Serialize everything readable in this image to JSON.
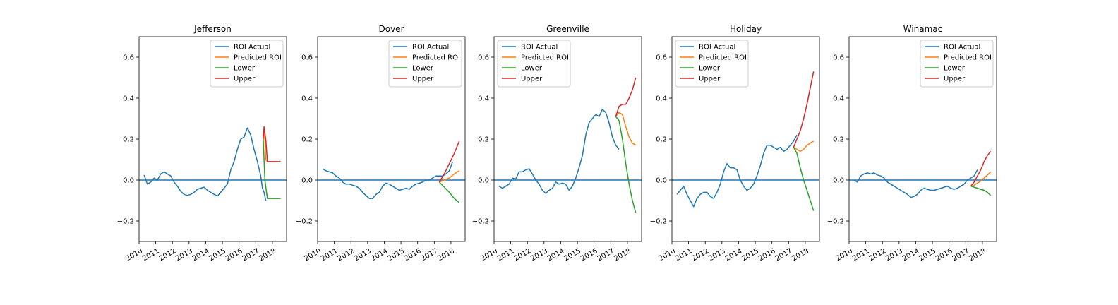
{
  "chart_data": [
    {
      "type": "line",
      "title": "Jefferson",
      "xlabel": "",
      "ylabel": "",
      "xlim": [
        2010.0,
        2018.85
      ],
      "ylim": [
        -0.3,
        0.7
      ],
      "xticks": [
        "2010",
        "2011",
        "2012",
        "2013",
        "2014",
        "2015",
        "2016",
        "2017",
        "2018"
      ],
      "yticks": [
        "−0.2",
        "0.0",
        "0.2",
        "0.4",
        "0.6"
      ],
      "legend_position": "top-right",
      "hline": 0.0,
      "series": [
        {
          "name": "ROI Actual",
          "color": "#1f77b4",
          "x": [
            2010.3,
            2010.5,
            2010.7,
            2010.9,
            2011.1,
            2011.3,
            2011.5,
            2011.7,
            2011.9,
            2012.1,
            2012.3,
            2012.5,
            2012.7,
            2012.9,
            2013.1,
            2013.3,
            2013.5,
            2013.7,
            2013.9,
            2014.1,
            2014.3,
            2014.5,
            2014.7,
            2014.9,
            2015.1,
            2015.3,
            2015.5,
            2015.7,
            2015.9,
            2016.1,
            2016.3,
            2016.5,
            2016.7,
            2016.9,
            2017.1,
            2017.3,
            2017.4,
            2017.5,
            2017.6,
            2017.8,
            2018.0,
            2018.2,
            2018.4,
            2018.6
          ],
          "y": [
            0.025,
            -0.02,
            -0.01,
            0.01,
            0.0,
            0.03,
            0.04,
            0.03,
            0.02,
            -0.01,
            -0.03,
            -0.055,
            -0.07,
            -0.075,
            -0.07,
            -0.06,
            -0.045,
            -0.04,
            -0.035,
            -0.05,
            -0.06,
            -0.07,
            -0.078,
            -0.06,
            -0.04,
            -0.02,
            0.05,
            0.09,
            0.15,
            0.2,
            0.21,
            0.255,
            0.22,
            0.15,
            0.09,
            0.02,
            -0.04,
            -0.06,
            -0.1,
            null,
            null,
            null,
            null,
            null
          ]
        },
        {
          "name": "Predicted ROI",
          "color": "#ff7f0e",
          "x": [
            2017.45,
            2017.5,
            2017.55,
            2017.6,
            2017.7
          ],
          "y": [
            0.2,
            0.24,
            0.2,
            0.1,
            0.09
          ]
        },
        {
          "name": "Lower",
          "color": "#2ca02c",
          "x": [
            2017.45,
            2017.55,
            2017.7,
            2018.0,
            2018.5
          ],
          "y": [
            0.2,
            0.0,
            -0.09,
            -0.09,
            -0.09
          ]
        },
        {
          "name": "Upper",
          "color": "#d62728",
          "x": [
            2017.45,
            2017.5,
            2017.6,
            2017.7,
            2018.0,
            2018.5
          ],
          "y": [
            0.2,
            0.26,
            0.2,
            0.09,
            0.09,
            0.09
          ]
        }
      ]
    },
    {
      "type": "line",
      "title": "Dover",
      "xlabel": "",
      "ylabel": "",
      "xlim": [
        2010.0,
        2018.85
      ],
      "ylim": [
        -0.3,
        0.7
      ],
      "xticks": [
        "2010",
        "2011",
        "2012",
        "2013",
        "2014",
        "2015",
        "2016",
        "2017",
        "2018"
      ],
      "yticks": [
        "−0.2",
        "0.0",
        "0.2",
        "0.4",
        "0.6"
      ],
      "legend_position": "top-right",
      "hline": 0.0,
      "series": [
        {
          "name": "ROI Actual",
          "color": "#1f77b4",
          "x": [
            2010.3,
            2010.5,
            2010.7,
            2010.9,
            2011.1,
            2011.3,
            2011.5,
            2011.7,
            2011.9,
            2012.1,
            2012.3,
            2012.5,
            2012.7,
            2012.9,
            2013.1,
            2013.3,
            2013.5,
            2013.7,
            2013.9,
            2014.1,
            2014.3,
            2014.5,
            2014.7,
            2014.9,
            2015.1,
            2015.3,
            2015.5,
            2015.7,
            2015.9,
            2016.1,
            2016.3,
            2016.5,
            2016.7,
            2016.9,
            2017.1,
            2017.3,
            2017.5,
            2017.7,
            2017.9,
            2018.1,
            2018.3,
            2018.5
          ],
          "y": [
            0.055,
            0.045,
            0.04,
            0.035,
            0.02,
            0.01,
            -0.01,
            -0.02,
            -0.02,
            -0.025,
            -0.03,
            -0.04,
            -0.06,
            -0.075,
            -0.09,
            -0.09,
            -0.07,
            -0.06,
            -0.03,
            -0.015,
            -0.02,
            -0.03,
            -0.04,
            -0.05,
            -0.045,
            -0.04,
            -0.045,
            -0.03,
            -0.02,
            -0.015,
            -0.01,
            0.0,
            0.0,
            0.01,
            0.02,
            0.02,
            0.02,
            0.03,
            0.045,
            0.09,
            null,
            null
          ]
        },
        {
          "name": "Predicted ROI",
          "color": "#ff7f0e",
          "x": [
            2017.3,
            2017.6,
            2017.9,
            2018.2,
            2018.5
          ],
          "y": [
            -0.01,
            0.0,
            0.01,
            0.03,
            0.045
          ]
        },
        {
          "name": "Lower",
          "color": "#2ca02c",
          "x": [
            2017.3,
            2017.6,
            2017.9,
            2018.2,
            2018.5
          ],
          "y": [
            -0.01,
            -0.035,
            -0.06,
            -0.09,
            -0.11
          ]
        },
        {
          "name": "Upper",
          "color": "#d62728",
          "x": [
            2017.3,
            2017.6,
            2017.9,
            2018.2,
            2018.5
          ],
          "y": [
            -0.01,
            0.03,
            0.08,
            0.13,
            0.19
          ]
        }
      ]
    },
    {
      "type": "line",
      "title": "Greenville",
      "xlabel": "",
      "ylabel": "",
      "xlim": [
        2010.0,
        2018.85
      ],
      "ylim": [
        -0.3,
        0.7
      ],
      "xticks": [
        "2010",
        "2011",
        "2012",
        "2013",
        "2014",
        "2015",
        "2016",
        "2017",
        "2018"
      ],
      "yticks": [
        "−0.2",
        "0.0",
        "0.2",
        "0.4",
        "0.6"
      ],
      "legend_position": "top-left",
      "hline": 0.0,
      "series": [
        {
          "name": "ROI Actual",
          "color": "#1f77b4",
          "x": [
            2010.3,
            2010.5,
            2010.7,
            2010.9,
            2011.1,
            2011.3,
            2011.5,
            2011.7,
            2011.9,
            2012.1,
            2012.3,
            2012.5,
            2012.7,
            2012.9,
            2013.1,
            2013.3,
            2013.5,
            2013.7,
            2013.9,
            2014.1,
            2014.3,
            2014.5,
            2014.7,
            2014.9,
            2015.1,
            2015.3,
            2015.5,
            2015.7,
            2015.9,
            2016.1,
            2016.3,
            2016.5,
            2016.7,
            2016.9,
            2017.1,
            2017.3,
            2017.5,
            2017.7,
            2017.9,
            2018.1,
            2018.3,
            2018.5
          ],
          "y": [
            -0.03,
            -0.04,
            -0.03,
            -0.02,
            0.01,
            0.005,
            0.04,
            0.04,
            0.05,
            0.055,
            0.03,
            0.0,
            -0.02,
            -0.05,
            -0.065,
            -0.05,
            -0.04,
            -0.01,
            -0.02,
            -0.015,
            -0.02,
            -0.05,
            -0.03,
            0.01,
            0.06,
            0.12,
            0.22,
            0.28,
            0.3,
            0.32,
            0.31,
            0.345,
            0.33,
            0.28,
            0.21,
            0.17,
            0.15,
            null,
            null,
            null,
            null,
            null
          ]
        },
        {
          "name": "Predicted ROI",
          "color": "#ff7f0e",
          "x": [
            2017.3,
            2017.5,
            2017.7,
            2017.9,
            2018.1,
            2018.3,
            2018.5
          ],
          "y": [
            0.31,
            0.33,
            0.32,
            0.26,
            0.21,
            0.18,
            0.17
          ]
        },
        {
          "name": "Lower",
          "color": "#2ca02c",
          "x": [
            2017.3,
            2017.5,
            2017.7,
            2017.9,
            2018.1,
            2018.3,
            2018.5
          ],
          "y": [
            0.31,
            0.29,
            0.2,
            0.08,
            -0.02,
            -0.1,
            -0.16
          ]
        },
        {
          "name": "Upper",
          "color": "#d62728",
          "x": [
            2017.3,
            2017.5,
            2017.7,
            2017.9,
            2018.1,
            2018.3,
            2018.5
          ],
          "y": [
            0.31,
            0.36,
            0.37,
            0.37,
            0.4,
            0.44,
            0.5
          ]
        }
      ]
    },
    {
      "type": "line",
      "title": "Holiday",
      "xlabel": "",
      "ylabel": "",
      "xlim": [
        2010.0,
        2018.85
      ],
      "ylim": [
        -0.3,
        0.7
      ],
      "xticks": [
        "2010",
        "2011",
        "2012",
        "2013",
        "2014",
        "2015",
        "2016",
        "2017",
        "2018"
      ],
      "yticks": [
        "−0.2",
        "0.0",
        "0.2",
        "0.4",
        "0.6"
      ],
      "legend_position": "top-left",
      "hline": 0.0,
      "series": [
        {
          "name": "ROI Actual",
          "color": "#1f77b4",
          "x": [
            2010.3,
            2010.5,
            2010.7,
            2010.9,
            2011.1,
            2011.3,
            2011.5,
            2011.7,
            2011.9,
            2012.1,
            2012.3,
            2012.5,
            2012.7,
            2012.9,
            2013.1,
            2013.3,
            2013.5,
            2013.7,
            2013.9,
            2014.1,
            2014.3,
            2014.5,
            2014.7,
            2014.9,
            2015.1,
            2015.3,
            2015.5,
            2015.7,
            2015.9,
            2016.1,
            2016.3,
            2016.5,
            2016.7,
            2016.9,
            2017.1,
            2017.3,
            2017.5,
            2017.7,
            2017.9,
            2018.1,
            2018.3,
            2018.5
          ],
          "y": [
            -0.07,
            -0.05,
            -0.03,
            -0.07,
            -0.1,
            -0.13,
            -0.09,
            -0.07,
            -0.06,
            -0.06,
            -0.08,
            -0.09,
            -0.06,
            -0.02,
            0.04,
            0.08,
            0.06,
            0.06,
            0.05,
            0.0,
            -0.03,
            -0.05,
            -0.04,
            -0.02,
            0.02,
            0.07,
            0.13,
            0.17,
            0.17,
            0.16,
            0.15,
            0.16,
            0.14,
            0.15,
            0.17,
            0.19,
            0.22,
            null,
            null,
            null,
            null,
            null
          ]
        },
        {
          "name": "Predicted ROI",
          "color": "#ff7f0e",
          "x": [
            2017.3,
            2017.5,
            2017.7,
            2017.9,
            2018.1,
            2018.3,
            2018.5
          ],
          "y": [
            0.16,
            0.15,
            0.14,
            0.15,
            0.17,
            0.18,
            0.19
          ]
        },
        {
          "name": "Lower",
          "color": "#2ca02c",
          "x": [
            2017.3,
            2017.5,
            2017.7,
            2017.9,
            2018.1,
            2018.3,
            2018.5
          ],
          "y": [
            0.16,
            0.13,
            0.06,
            0.0,
            -0.05,
            -0.1,
            -0.15
          ]
        },
        {
          "name": "Upper",
          "color": "#d62728",
          "x": [
            2017.3,
            2017.5,
            2017.7,
            2017.9,
            2018.1,
            2018.3,
            2018.5
          ],
          "y": [
            0.16,
            0.2,
            0.24,
            0.3,
            0.37,
            0.45,
            0.53
          ]
        }
      ]
    },
    {
      "type": "line",
      "title": "Winamac",
      "xlabel": "",
      "ylabel": "",
      "xlim": [
        2010.0,
        2018.85
      ],
      "ylim": [
        -0.3,
        0.7
      ],
      "xticks": [
        "2010",
        "2011",
        "2012",
        "2013",
        "2014",
        "2015",
        "2016",
        "2017",
        "2018"
      ],
      "yticks": [
        "−0.2",
        "0.0",
        "0.2",
        "0.4",
        "0.6"
      ],
      "legend_position": "top-right",
      "hline": 0.0,
      "series": [
        {
          "name": "ROI Actual",
          "color": "#1f77b4",
          "x": [
            2010.3,
            2010.5,
            2010.7,
            2010.9,
            2011.1,
            2011.3,
            2011.5,
            2011.7,
            2011.9,
            2012.1,
            2012.3,
            2012.5,
            2012.7,
            2012.9,
            2013.1,
            2013.3,
            2013.5,
            2013.7,
            2013.9,
            2014.1,
            2014.3,
            2014.5,
            2014.7,
            2014.9,
            2015.1,
            2015.3,
            2015.5,
            2015.7,
            2015.9,
            2016.1,
            2016.3,
            2016.5,
            2016.7,
            2016.9,
            2017.1,
            2017.3,
            2017.5,
            2017.7,
            2017.9,
            2018.1,
            2018.3,
            2018.5
          ],
          "y": [
            0.0,
            -0.01,
            0.02,
            0.03,
            0.035,
            0.03,
            0.035,
            0.025,
            0.02,
            0.01,
            -0.01,
            -0.02,
            -0.03,
            -0.04,
            -0.05,
            -0.06,
            -0.07,
            -0.085,
            -0.08,
            -0.07,
            -0.05,
            -0.04,
            -0.045,
            -0.05,
            -0.05,
            -0.045,
            -0.04,
            -0.035,
            -0.03,
            -0.04,
            -0.045,
            -0.04,
            -0.03,
            -0.02,
            0.0,
            0.01,
            0.02,
            0.05,
            null,
            null,
            null,
            null
          ]
        },
        {
          "name": "Predicted ROI",
          "color": "#ff7f0e",
          "x": [
            2017.3,
            2017.5,
            2017.7,
            2017.9,
            2018.1,
            2018.3,
            2018.5
          ],
          "y": [
            -0.03,
            -0.025,
            -0.015,
            -0.005,
            0.01,
            0.025,
            0.04
          ]
        },
        {
          "name": "Lower",
          "color": "#2ca02c",
          "x": [
            2017.3,
            2017.5,
            2017.7,
            2017.9,
            2018.1,
            2018.3,
            2018.5
          ],
          "y": [
            -0.03,
            -0.035,
            -0.04,
            -0.045,
            -0.05,
            -0.06,
            -0.075
          ]
        },
        {
          "name": "Upper",
          "color": "#d62728",
          "x": [
            2017.3,
            2017.5,
            2017.7,
            2017.9,
            2018.1,
            2018.3,
            2018.5
          ],
          "y": [
            -0.03,
            -0.01,
            0.02,
            0.05,
            0.09,
            0.12,
            0.14
          ]
        }
      ]
    }
  ]
}
